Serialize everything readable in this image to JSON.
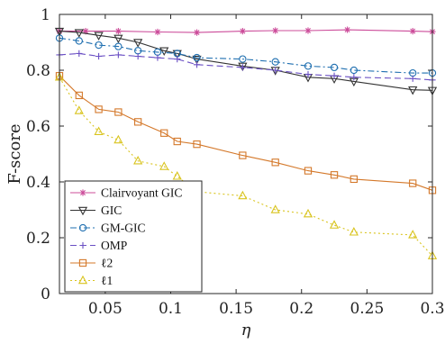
{
  "chart_data": {
    "type": "line",
    "xlabel": "η",
    "ylabel": "F-score",
    "xlim": [
      0.015,
      0.3
    ],
    "ylim": [
      0,
      1
    ],
    "xticks": [
      "0.05",
      "0.1",
      "0.15",
      "0.2",
      "0.25",
      "0.3"
    ],
    "xtick_values": [
      0.05,
      0.1,
      0.15,
      0.2,
      0.25,
      0.3
    ],
    "yticks": [
      "0",
      "0.2",
      "0.4",
      "0.6",
      "0.8",
      "1"
    ],
    "ytick_values": [
      0,
      0.2,
      0.4,
      0.6,
      0.8,
      1
    ],
    "grid": false,
    "legend_position": "bottom-left",
    "series": [
      {
        "name": "Clairvoyant GIC",
        "color": "#cc4c9a",
        "marker": "star",
        "dash": "solid",
        "x": [
          0.015,
          0.035,
          0.06,
          0.09,
          0.12,
          0.155,
          0.18,
          0.205,
          0.235,
          0.285,
          0.3
        ],
        "y": [
          0.94,
          0.94,
          0.94,
          0.937,
          0.935,
          0.94,
          0.942,
          0.942,
          0.945,
          0.94,
          0.938
        ]
      },
      {
        "name": "GIC",
        "color": "#333333",
        "marker": "triangle-down",
        "dash": "solid",
        "x": [
          0.015,
          0.03,
          0.045,
          0.06,
          0.075,
          0.095,
          0.105,
          0.12,
          0.155,
          0.18,
          0.205,
          0.225,
          0.24,
          0.285,
          0.3
        ],
        "y": [
          0.94,
          0.935,
          0.925,
          0.915,
          0.9,
          0.87,
          0.86,
          0.84,
          0.815,
          0.8,
          0.775,
          0.77,
          0.76,
          0.73,
          0.728
        ]
      },
      {
        "name": "GM-GIC",
        "color": "#1f6fb0",
        "marker": "circle",
        "dash": "dashdot",
        "x": [
          0.015,
          0.03,
          0.045,
          0.06,
          0.075,
          0.09,
          0.105,
          0.12,
          0.155,
          0.18,
          0.205,
          0.225,
          0.24,
          0.285,
          0.3
        ],
        "y": [
          0.915,
          0.905,
          0.89,
          0.885,
          0.87,
          0.865,
          0.86,
          0.845,
          0.84,
          0.83,
          0.815,
          0.81,
          0.8,
          0.79,
          0.79
        ]
      },
      {
        "name": "OMP",
        "color": "#6a4fc4",
        "marker": "plus",
        "dash": "dashed",
        "x": [
          0.015,
          0.03,
          0.045,
          0.06,
          0.075,
          0.09,
          0.105,
          0.12,
          0.155,
          0.18,
          0.205,
          0.225,
          0.24,
          0.285,
          0.3
        ],
        "y": [
          0.855,
          0.86,
          0.85,
          0.855,
          0.85,
          0.845,
          0.84,
          0.82,
          0.81,
          0.8,
          0.785,
          0.78,
          0.775,
          0.77,
          0.765
        ]
      },
      {
        "name": "ℓ2",
        "color": "#d4782a",
        "marker": "square",
        "dash": "solid",
        "x": [
          0.015,
          0.03,
          0.045,
          0.06,
          0.075,
          0.095,
          0.105,
          0.12,
          0.155,
          0.18,
          0.205,
          0.225,
          0.24,
          0.285,
          0.3
        ],
        "y": [
          0.78,
          0.71,
          0.66,
          0.65,
          0.615,
          0.575,
          0.545,
          0.535,
          0.495,
          0.47,
          0.44,
          0.425,
          0.41,
          0.395,
          0.37
        ]
      },
      {
        "name": "ℓ1",
        "color": "#d9c41e",
        "marker": "triangle-up",
        "dash": "dotted",
        "x": [
          0.015,
          0.03,
          0.045,
          0.06,
          0.075,
          0.095,
          0.105,
          0.12,
          0.155,
          0.18,
          0.205,
          0.225,
          0.24,
          0.285,
          0.3
        ],
        "y": [
          0.775,
          0.655,
          0.58,
          0.55,
          0.475,
          0.455,
          0.42,
          0.365,
          0.35,
          0.3,
          0.285,
          0.245,
          0.22,
          0.21,
          0.135
        ]
      }
    ]
  }
}
